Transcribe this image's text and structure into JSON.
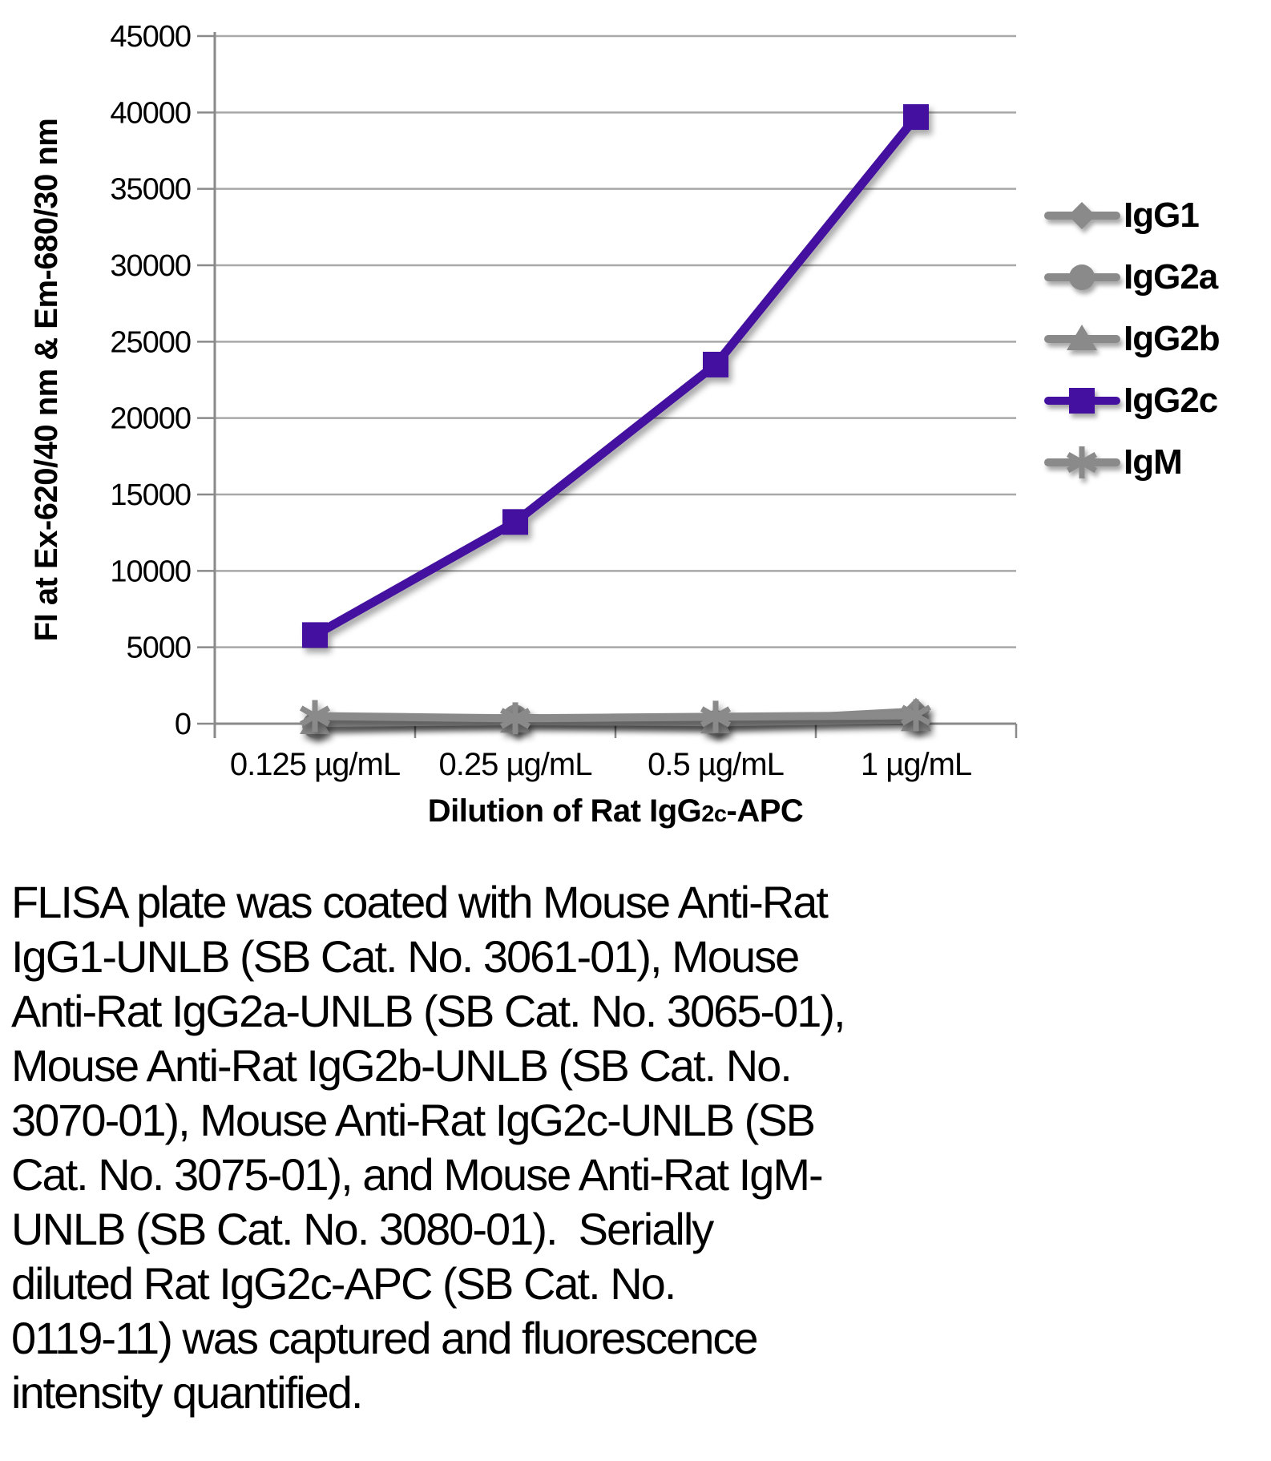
{
  "chart_data": {
    "type": "line",
    "title": "",
    "ylabel": "FI at Ex-620/40 nm & Em-680/30 nm",
    "xlabel": {
      "pre": "Dilution of Rat IgG",
      "sub": "2c",
      "post": "-APC"
    },
    "categories": [
      "0.125 µg/mL",
      "0.25 µg/mL",
      "0.5 µg/mL",
      "1 µg/mL"
    ],
    "series": [
      {
        "name": "IgG1",
        "marker": "diamond",
        "color": "#8a8a8a",
        "values": [
          100,
          150,
          100,
          800
        ]
      },
      {
        "name": "IgG2a",
        "marker": "circle",
        "color": "#8a8a8a",
        "values": [
          -100,
          400,
          50,
          350
        ]
      },
      {
        "name": "IgG2b",
        "marker": "triangle",
        "color": "#8a8a8a",
        "values": [
          50,
          150,
          100,
          250
        ]
      },
      {
        "name": "IgG2c",
        "marker": "square",
        "color": "#4410a0",
        "values": [
          5800,
          13200,
          23500,
          39700
        ]
      },
      {
        "name": "IgM",
        "marker": "asterisk",
        "color": "#8a8a8a",
        "values": [
          500,
          350,
          450,
          550
        ]
      }
    ],
    "draw_order": [
      0,
      1,
      2,
      4,
      3
    ],
    "ylim": [
      0,
      45000
    ],
    "y_tick_step": 5000,
    "grid": true,
    "legend_position": "right",
    "gridline_color": "#a8a8a8",
    "axis_color": "#8a8a8a"
  },
  "caption": {
    "lines": [
      "FLISA plate was coated with Mouse Anti-Rat",
      "IgG1-UNLB (SB Cat. No. 3061-01), Mouse",
      "Anti-Rat IgG2a-UNLB (SB Cat. No. 3065-01),",
      "Mouse Anti-Rat IgG2b-UNLB (SB Cat. No.",
      "3070-01), Mouse Anti-Rat IgG2c-UNLB (SB",
      "Cat. No. 3075-01), and Mouse Anti-Rat IgM-",
      "UNLB (SB Cat. No. 3080-01).  Serially",
      "diluted Rat IgG2c-APC (SB Cat. No.",
      "0119-11) was captured and fluorescence",
      "intensity quantified."
    ]
  }
}
